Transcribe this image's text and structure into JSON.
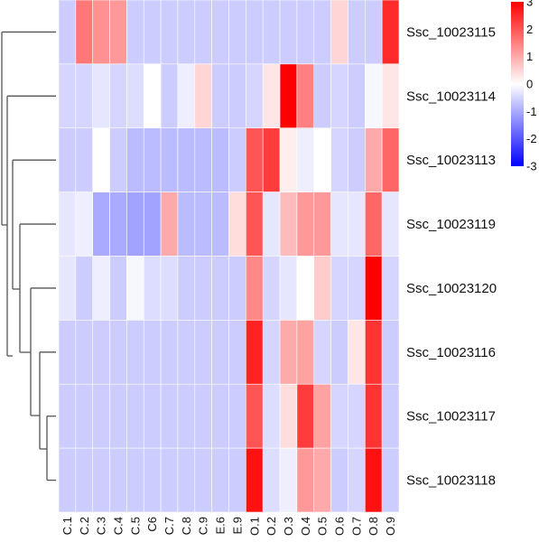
{
  "chart_data": {
    "type": "heatmap",
    "rows": [
      "Ssc_10023115",
      "Ssc_10023114",
      "Ssc_10023113",
      "Ssc_10023119",
      "Ssc_10023120",
      "Ssc_10023116",
      "Ssc_10023117",
      "Ssc_10023118"
    ],
    "columns": [
      "C.1",
      "C.2",
      "C.3",
      "C.4",
      "C.5",
      "C6",
      "C.7",
      "C.8",
      "C.9",
      "E.6",
      "E.9",
      "O.1",
      "O.2",
      "O.3",
      "O.4",
      "O.5",
      "O.6",
      "O.7",
      "O.8",
      "O.9"
    ],
    "values": [
      [
        -0.6,
        1.6,
        1.3,
        1.2,
        -0.6,
        -0.6,
        -0.6,
        -0.6,
        -0.6,
        -0.6,
        -0.6,
        -0.6,
        -0.6,
        -0.6,
        -0.6,
        -0.6,
        0.5,
        -0.6,
        -0.6,
        2.5
      ],
      [
        -0.5,
        -0.5,
        -0.3,
        -0.5,
        -0.4,
        0.0,
        -0.6,
        -0.2,
        0.5,
        -0.6,
        -0.6,
        -0.5,
        0.3,
        3.2,
        1.5,
        -0.6,
        -0.5,
        -0.6,
        -0.1,
        0.3
      ],
      [
        -0.6,
        -0.6,
        0.0,
        -0.6,
        -0.8,
        -0.8,
        -0.8,
        -0.8,
        -0.8,
        -0.8,
        -0.6,
        2.0,
        2.3,
        0.2,
        -0.2,
        0.0,
        -0.5,
        -0.6,
        1.0,
        1.8
      ],
      [
        -0.3,
        -0.2,
        -1.0,
        -1.0,
        -1.1,
        -1.1,
        1.0,
        -0.8,
        -0.8,
        -0.8,
        0.4,
        2.0,
        -0.3,
        0.8,
        1.2,
        1.2,
        -0.3,
        -0.3,
        1.8,
        -0.3
      ],
      [
        -0.3,
        -0.6,
        -0.2,
        -0.6,
        -0.1,
        -0.4,
        -0.4,
        -0.6,
        -0.6,
        -0.6,
        -0.6,
        1.4,
        -0.5,
        -0.3,
        0.0,
        0.6,
        -0.5,
        -0.5,
        3.3,
        -0.5
      ],
      [
        -0.6,
        -0.6,
        -0.6,
        -0.6,
        -0.6,
        -0.6,
        -0.6,
        -0.6,
        -0.6,
        -0.6,
        -0.6,
        2.6,
        -0.5,
        1.0,
        1.1,
        -0.5,
        -0.6,
        0.3,
        2.4,
        -0.6
      ],
      [
        -0.6,
        -0.6,
        -0.6,
        -0.6,
        -0.6,
        -0.6,
        -0.6,
        -0.6,
        -0.6,
        -0.6,
        -0.6,
        2.0,
        -0.4,
        0.4,
        2.3,
        1.1,
        -0.5,
        -0.5,
        2.4,
        -0.6
      ],
      [
        -0.6,
        -0.6,
        -0.6,
        -0.6,
        -0.6,
        -0.6,
        -0.6,
        -0.6,
        -0.6,
        -0.6,
        -0.6,
        2.8,
        -0.4,
        -0.2,
        1.2,
        1.0,
        -0.6,
        -0.5,
        2.8,
        -0.6
      ]
    ],
    "legend": {
      "range": [
        -3,
        3
      ],
      "ticks": [
        3,
        2,
        1,
        0,
        -1,
        -2,
        -3
      ],
      "tick_labels": [
        "3",
        "2",
        "1",
        "0",
        "-1",
        "-2",
        "-3"
      ],
      "position": "top-right"
    },
    "colors": {
      "low": "#0000ff",
      "mid": "#ffffff",
      "high": "#ff0000"
    },
    "dendrogram": {
      "side": "left",
      "leaf_order": [
        "Ssc_10023115",
        "Ssc_10023114",
        "Ssc_10023113",
        "Ssc_10023119",
        "Ssc_10023120",
        "Ssc_10023116",
        "Ssc_10023117",
        "Ssc_10023118"
      ]
    },
    "grid": true
  }
}
